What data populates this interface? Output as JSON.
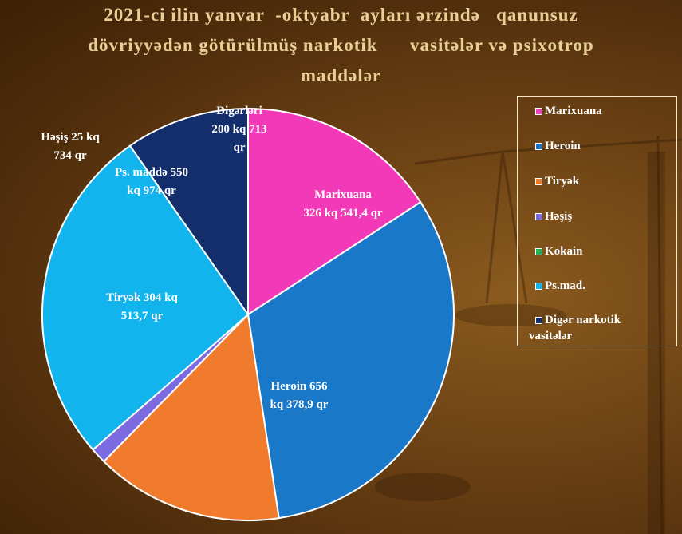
{
  "title_lines": [
    "2021-ci ilin yanvar  -oktyabr  ayları ərzində   qanunsuz",
    "dövriyyədən götürülmüş narkotik      vasitələr və psixotrop",
    "maddələr"
  ],
  "colors": {
    "marixuana": "#f23ab8",
    "heroin": "#1a78c8",
    "tiryak": "#f07b2c",
    "hesis": "#7b6ae0",
    "kokain": "#22b04a",
    "ps_mad": "#12b4ee",
    "diger": "#132e6b"
  },
  "chart_data": {
    "type": "pie",
    "slices": [
      {
        "key": "marixuana",
        "legend": "Marixuana",
        "value": 326541.4,
        "label_lines": [
          "Marixuana",
          "326  kq  541,4  qr"
        ]
      },
      {
        "key": "heroin",
        "legend": "Heroin",
        "value": 656378.9,
        "label_lines": [
          "Heroin 656",
          "kq 378,9 qr"
        ]
      },
      {
        "key": "tiryak",
        "legend": "Tiryək",
        "value": 304513.7,
        "label_lines": [
          "Tiryək  304  kq",
          "513,7  qr"
        ]
      },
      {
        "key": "hesis",
        "legend": "Həşiş",
        "value": 25734,
        "label_lines": [
          "Həşiş  25  kq",
          "734  qr"
        ]
      },
      {
        "key": "kokain",
        "legend": "Kokain",
        "value": 0,
        "label_lines": []
      },
      {
        "key": "ps_mad",
        "legend": "Ps.mad.",
        "value": 550974,
        "label_lines": [
          "Ps.  maddə  550",
          "kq  974  qr"
        ]
      },
      {
        "key": "diger",
        "legend": "Digər narkotik vasitələr",
        "value": 200713,
        "label_lines": [
          "Digərləri",
          "200  kq  713",
          "qr"
        ]
      }
    ],
    "legend_lines": {
      "diger": [
        "Digər narkotik",
        "vasitələr"
      ]
    }
  }
}
